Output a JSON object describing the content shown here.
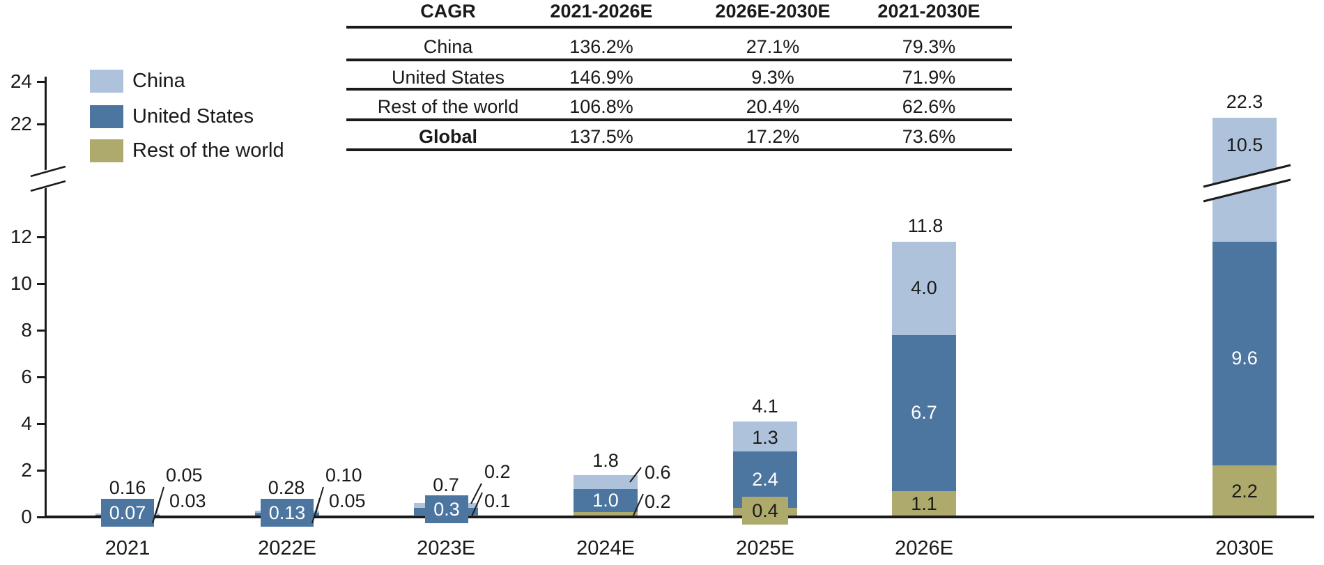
{
  "page": {
    "background": "#FFFFFF"
  },
  "colors": {
    "text": "#1A1A1A",
    "axis": "#1A1A1A",
    "china": "#AEC3DB",
    "united_states": "#4C75A0",
    "rest_of_world": "#ADAA6C"
  },
  "legend": {
    "items": [
      {
        "label": "China",
        "color": "#AEC3DB"
      },
      {
        "label": "United States",
        "color": "#4C75A0"
      },
      {
        "label": "Rest of the world",
        "color": "#ADAA6C"
      }
    ]
  },
  "cagr_table": {
    "headers": [
      "CAGR",
      "2021-2026E",
      "2026E-2030E",
      "2021-2030E"
    ],
    "rows": [
      {
        "label": "China",
        "values": [
          "136.2%",
          "27.1%",
          "79.3%"
        ],
        "bold": false
      },
      {
        "label": "United States",
        "values": [
          "146.9%",
          "9.3%",
          "71.9%"
        ],
        "bold": false
      },
      {
        "label": "Rest of the world",
        "values": [
          "106.8%",
          "20.4%",
          "62.6%"
        ],
        "bold": false
      },
      {
        "label": "Global",
        "values": [
          "137.5%",
          "17.2%",
          "73.6%"
        ],
        "bold": true
      }
    ]
  },
  "chart_data": {
    "type": "bar",
    "subtype": "stacked",
    "categories": [
      "2021",
      "2022E",
      "2023E",
      "2024E",
      "2025E",
      "2026E",
      "2030E"
    ],
    "series": [
      {
        "name": "Rest of the world",
        "color": "#ADAA6C",
        "values": [
          0.03,
          0.05,
          0.1,
          0.2,
          0.4,
          1.1,
          2.2
        ],
        "labels": [
          "0.03",
          "0.05",
          "0.1",
          "0.2",
          "0.4",
          "1.1",
          "2.2"
        ]
      },
      {
        "name": "United States",
        "color": "#4C75A0",
        "values": [
          0.07,
          0.13,
          0.3,
          1.0,
          2.4,
          6.7,
          9.6
        ],
        "labels": [
          "0.07",
          "0.13",
          "0.3",
          "1.0",
          "2.4",
          "6.7",
          "9.6"
        ]
      },
      {
        "name": "China",
        "color": "#AEC3DB",
        "values": [
          0.05,
          0.1,
          0.2,
          0.6,
          1.3,
          4.0,
          10.5
        ],
        "labels": [
          "0.05",
          "0.10",
          "0.2",
          "0.6",
          "1.3",
          "4.0",
          "10.5"
        ]
      }
    ],
    "stacking_order_bottom_to_top": [
      "Rest of the world",
      "United States",
      "China"
    ],
    "totals": [
      "0.16",
      "0.28",
      "0.7",
      "1.8",
      "4.1",
      "11.8",
      "22.3"
    ],
    "y_axis": {
      "ticks": [
        0,
        2,
        4,
        6,
        8,
        10,
        12,
        22,
        24
      ],
      "axis_break_between": [
        13,
        21
      ],
      "gridlines": false
    },
    "x_axis": {
      "labels": [
        "2021",
        "2022E",
        "2023E",
        "2024E",
        "2025E",
        "2026E",
        "2030E"
      ]
    },
    "legend_position": "top-left",
    "axis_break": true
  }
}
